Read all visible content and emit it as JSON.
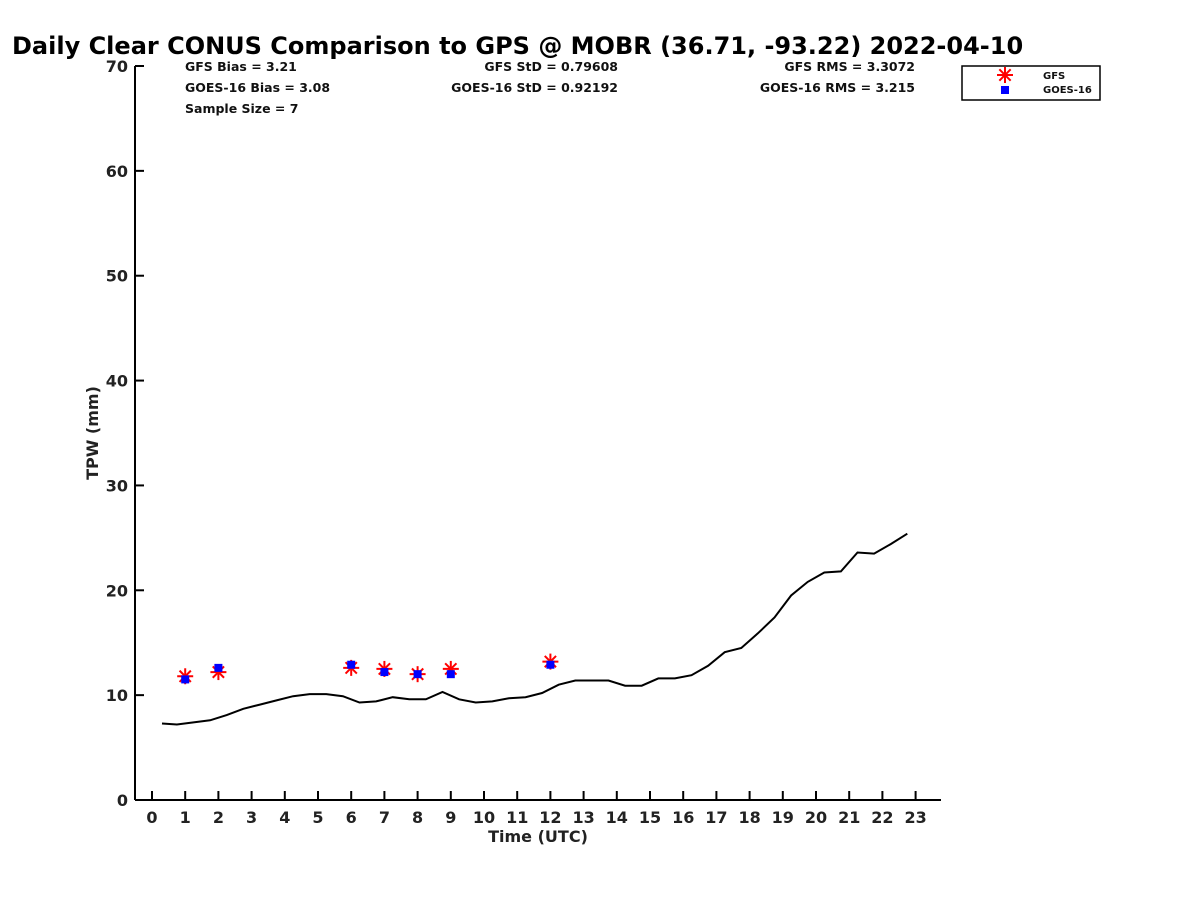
{
  "chart_data": {
    "type": "scatter",
    "title": "Daily Clear CONUS Comparison to GPS @ MOBR (36.71, -93.22) 2022-04-10",
    "xlabel": "Time (UTC)",
    "ylabel": "TPW (mm)",
    "xlim": [
      -0.5,
      23.7
    ],
    "ylim": [
      0,
      70
    ],
    "xticks": [
      0,
      1,
      2,
      3,
      4,
      5,
      6,
      7,
      8,
      9,
      10,
      11,
      12,
      13,
      14,
      15,
      16,
      17,
      18,
      19,
      20,
      21,
      22,
      23
    ],
    "yticks": [
      0,
      10,
      20,
      30,
      40,
      50,
      60,
      70
    ],
    "grid": false,
    "legend_position": "top-right outside plot",
    "stats": {
      "gfs_bias": "GFS Bias = 3.21",
      "goes_bias": "GOES-16 Bias = 3.08",
      "sample_size": "Sample Size = 7",
      "gfs_std": "GFS StD = 0.79608",
      "goes_std": "GOES-16 StD = 0.92192",
      "gfs_rms": "GFS RMS = 3.3072",
      "goes_rms": "GOES-16 RMS = 3.215"
    },
    "series": [
      {
        "kind": "line",
        "color": "#000000",
        "x": [
          0.3,
          0.75,
          1.25,
          1.75,
          2.25,
          2.75,
          3.25,
          3.75,
          4.25,
          4.75,
          5.25,
          5.75,
          6.25,
          6.75,
          7.25,
          7.75,
          8.25,
          8.75,
          9.25,
          9.75,
          10.25,
          10.75,
          11.25,
          11.75,
          12.25,
          12.75,
          13.25,
          13.75,
          14.25,
          14.75,
          15.25,
          15.75,
          16.25,
          16.75,
          17.25,
          17.75,
          18.25,
          18.75,
          19.25,
          19.75,
          20.25,
          20.75,
          21.25,
          21.75,
          22.25,
          22.75
        ],
        "y": [
          7.3,
          7.2,
          7.4,
          7.6,
          8.1,
          8.7,
          9.1,
          9.5,
          9.9,
          10.1,
          10.1,
          9.9,
          9.3,
          9.4,
          9.8,
          9.6,
          9.6,
          10.3,
          9.6,
          9.3,
          9.4,
          9.7,
          9.8,
          10.2,
          11.0,
          11.4,
          11.4,
          11.4,
          10.9,
          10.9,
          11.6,
          11.6,
          11.9,
          12.8,
          14.1,
          14.5,
          15.9,
          17.4,
          19.5,
          20.8,
          21.7,
          21.8,
          23.6,
          23.5,
          24.4,
          25.4
        ]
      },
      {
        "name": "GFS",
        "kind": "marker",
        "marker": "asterisk",
        "color": "#ff0000",
        "x": [
          1,
          2,
          6,
          7,
          8,
          9,
          12
        ],
        "y": [
          11.8,
          12.2,
          12.6,
          12.5,
          12.0,
          12.5,
          13.2
        ]
      },
      {
        "name": "GOES-16",
        "kind": "marker",
        "marker": "square",
        "color": "#0000ff",
        "x": [
          1,
          2,
          6,
          7,
          8,
          9,
          12
        ],
        "y": [
          11.5,
          12.6,
          12.9,
          12.2,
          12.0,
          12.0,
          12.9
        ]
      }
    ]
  }
}
